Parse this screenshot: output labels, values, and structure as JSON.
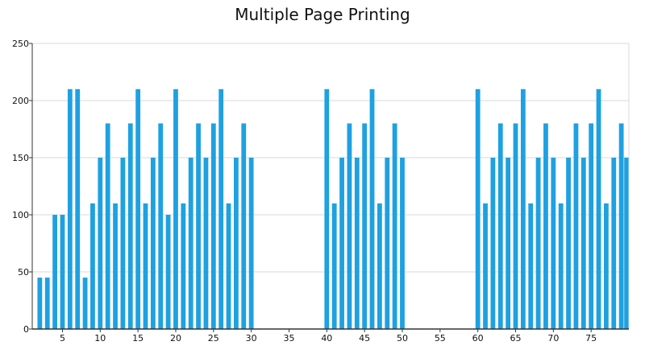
{
  "chart_data": {
    "type": "bar",
    "title": "Multiple Page Printing",
    "xlabel": "",
    "ylabel": "",
    "xlim": [
      1,
      80
    ],
    "ylim": [
      0,
      250
    ],
    "y_ticks": [
      0,
      50,
      100,
      150,
      200,
      250
    ],
    "x_ticks": [
      5,
      10,
      15,
      20,
      25,
      30,
      35,
      40,
      45,
      50,
      55,
      60,
      65,
      70,
      75
    ],
    "grid": "horizontal",
    "bar_color": "#1ea1e1",
    "x": [
      2,
      3,
      4,
      5,
      6,
      7,
      8,
      9,
      10,
      11,
      12,
      13,
      14,
      15,
      16,
      17,
      18,
      19,
      20,
      21,
      22,
      23,
      24,
      25,
      26,
      27,
      28,
      29,
      30,
      40,
      41,
      42,
      43,
      44,
      45,
      46,
      47,
      48,
      49,
      50,
      60,
      61,
      62,
      63,
      64,
      65,
      66,
      67,
      68,
      69,
      70,
      71,
      72,
      73,
      74,
      75,
      76,
      77,
      78,
      79,
      80
    ],
    "values": [
      45,
      45,
      100,
      100,
      210,
      210,
      45,
      110,
      150,
      180,
      110,
      150,
      180,
      210,
      110,
      150,
      180,
      100,
      210,
      110,
      150,
      180,
      150,
      180,
      210,
      110,
      150,
      180,
      150,
      210,
      110,
      150,
      180,
      150,
      180,
      210,
      110,
      150,
      180,
      150,
      210,
      110,
      150,
      180,
      150,
      180,
      210,
      110,
      150,
      180,
      150,
      110,
      150,
      180,
      150,
      180,
      210,
      110,
      150,
      180,
      150
    ]
  }
}
